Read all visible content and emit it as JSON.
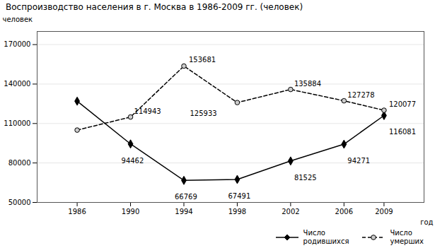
{
  "chart_data": {
    "type": "line",
    "title": "Воспроизводство населения в г. Москва в 1986-2009 гг. (человек)",
    "xlabel": "год",
    "ylabel": "человек",
    "x": [
      1986,
      1990,
      1994,
      1998,
      2002,
      2006,
      2009
    ],
    "series": [
      {
        "name": "Число\nродившихся",
        "color": "#000000",
        "marker": "diamond",
        "line_style": "solid",
        "values": [
          127000,
          94462,
          66769,
          67491,
          81525,
          94271,
          116081
        ],
        "value_labels": [
          null,
          "94462",
          "66769",
          "67491",
          "81525",
          "94271",
          "116081"
        ]
      },
      {
        "name": "Число\nумерших",
        "color": "#000000",
        "marker": "circle",
        "line_style": "dashed",
        "values": [
          105000,
          114943,
          153681,
          125933,
          135884,
          127278,
          120077
        ],
        "value_labels": [
          null,
          "114943",
          "153681",
          "125933",
          "135884",
          "127278",
          "120077"
        ]
      }
    ],
    "data_labels": true,
    "xlim": [
      1983,
      2012
    ],
    "xticks": [
      1986,
      1990,
      1994,
      1998,
      2002,
      2006,
      2009
    ],
    "ylim": [
      50000,
      180000
    ],
    "yticks": [
      50000,
      80000,
      110000,
      140000,
      170000
    ],
    "grid": true,
    "legend": "lower right"
  }
}
